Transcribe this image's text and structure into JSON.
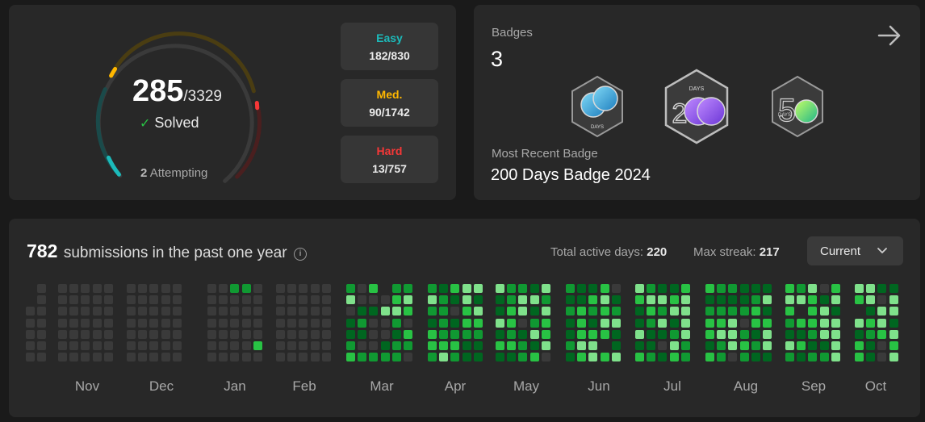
{
  "stats": {
    "solved": "285",
    "total": "/3329",
    "solved_label": "Solved",
    "attempting_count": "2",
    "attempting_label": "Attempting",
    "difficulty": [
      {
        "label": "Easy",
        "value": "182/830",
        "color": "#1cbaba"
      },
      {
        "label": "Med.",
        "value": "90/1742",
        "color": "#ffb700"
      },
      {
        "label": "Hard",
        "value": "13/757",
        "color": "#f63737"
      }
    ]
  },
  "badges": {
    "title": "Badges",
    "count": "3",
    "icons": [
      {
        "label": "DAYS",
        "name": "100-days-badge"
      },
      {
        "label": "DAYS",
        "name": "200-days-badge"
      },
      {
        "label": "DAYS",
        "name": "50-days-badge"
      }
    ],
    "recent_label": "Most Recent Badge",
    "recent_name": "200 Days Badge 2024"
  },
  "submissions": {
    "count": "782",
    "label": "submissions in the past one year",
    "active_days_label": "Total active days:",
    "active_days": "220",
    "max_streak_label": "Max streak:",
    "max_streak": "217",
    "dropdown_value": "Current",
    "months": [
      "Nov",
      "Dec",
      "Jan",
      "Feb",
      "Mar",
      "Apr",
      "May",
      "Jun",
      "Jul",
      "Aug",
      "Sep",
      "Oct"
    ]
  },
  "colors": {
    "empty": "#3a3a3a",
    "level1": "#006620",
    "level2": "#109932",
    "level3": "#28c244",
    "level4": "#7fe18b"
  }
}
